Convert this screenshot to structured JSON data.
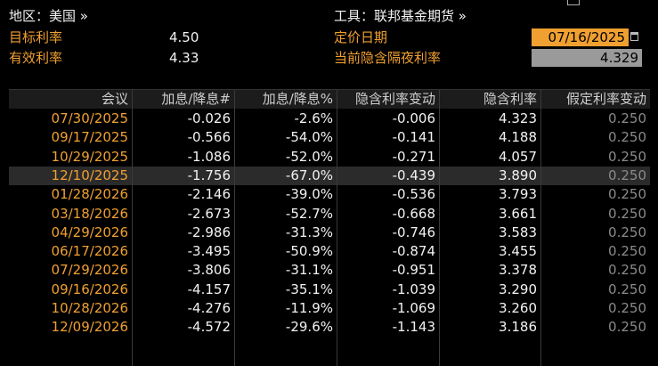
{
  "header": {
    "region": "地区：美国 »",
    "target_label": "目标利率",
    "target_value": "4.50",
    "effective_label": "有效利率",
    "effective_value": "4.33",
    "instrument": "工具：联邦基金期货 »",
    "date_label": "定价日期",
    "date_value": "07/16/2025",
    "implied_label": "当前隐含隔夜利率",
    "implied_value": "4.329"
  },
  "table": {
    "columns": [
      "会议",
      "加息/降息#",
      "加息/降息%",
      "隐含利率变动",
      "隐含利率",
      "假定利率变动"
    ],
    "highlight_row": 3,
    "rows": [
      [
        "07/30/2025",
        "-0.026",
        "-2.6%",
        "-0.006",
        "4.323",
        "0.250"
      ],
      [
        "09/17/2025",
        "-0.566",
        "-54.0%",
        "-0.141",
        "4.188",
        "0.250"
      ],
      [
        "10/29/2025",
        "-1.086",
        "-52.0%",
        "-0.271",
        "4.057",
        "0.250"
      ],
      [
        "12/10/2025",
        "-1.756",
        "-67.0%",
        "-0.439",
        "3.890",
        "0.250"
      ],
      [
        "01/28/2026",
        "-2.146",
        "-39.0%",
        "-0.536",
        "3.793",
        "0.250"
      ],
      [
        "03/18/2026",
        "-2.673",
        "-52.7%",
        "-0.668",
        "3.661",
        "0.250"
      ],
      [
        "04/29/2026",
        "-2.986",
        "-31.3%",
        "-0.746",
        "3.583",
        "0.250"
      ],
      [
        "06/17/2026",
        "-3.495",
        "-50.9%",
        "-0.874",
        "3.455",
        "0.250"
      ],
      [
        "07/29/2026",
        "-3.806",
        "-31.1%",
        "-0.951",
        "3.378",
        "0.250"
      ],
      [
        "09/16/2026",
        "-4.157",
        "-35.1%",
        "-1.039",
        "3.290",
        "0.250"
      ],
      [
        "10/28/2026",
        "-4.276",
        "-11.9%",
        "-1.069",
        "3.260",
        "0.250"
      ],
      [
        "12/09/2026",
        "-4.572",
        "-29.6%",
        "-1.143",
        "3.186",
        "0.250"
      ]
    ]
  }
}
